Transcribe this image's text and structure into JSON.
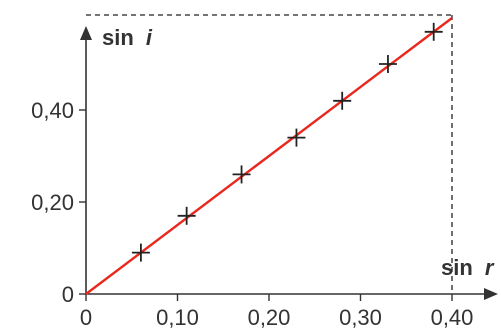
{
  "chart_data": {
    "type": "scatter",
    "title": "",
    "xlabel_main": "sin",
    "xlabel_var": "r",
    "ylabel_main": "sin",
    "ylabel_var": "i",
    "xlim": [
      0,
      0.4
    ],
    "ylim": [
      0,
      0.6
    ],
    "x_ticks": [
      0,
      0.1,
      0.2,
      0.3,
      0.4
    ],
    "x_tick_labels": [
      "0",
      "0,10",
      "0,20",
      "0,30",
      "0,40"
    ],
    "y_ticks": [
      0,
      0.2,
      0.4
    ],
    "y_tick_labels": [
      "0",
      "0,20",
      "0,40"
    ],
    "grid": false,
    "series": [
      {
        "x": [
          0.06,
          0.11,
          0.17,
          0.23,
          0.28,
          0.33,
          0.38
        ],
        "y": [
          0.09,
          0.17,
          0.26,
          0.34,
          0.42,
          0.5,
          0.57
        ]
      }
    ],
    "fit_line": {
      "slope": 1.5,
      "intercept": 0,
      "color": "#e8281e"
    },
    "colors": {
      "axis": "#333333",
      "markers": "#222222",
      "dashed_box": "#222222"
    }
  }
}
